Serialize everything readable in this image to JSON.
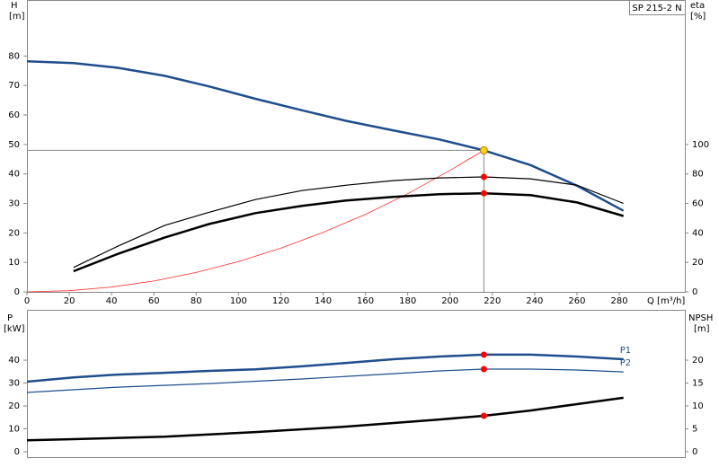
{
  "chart_data": [
    {
      "type": "line",
      "title": "SP 215-2 N",
      "ylabel": "H",
      "yunit": "[m]",
      "y2label": "eta",
      "y2unit": "[%]",
      "xlabel": "Q [m³/h]",
      "xlim": [
        0,
        311
      ],
      "xticks": [
        0,
        20,
        40,
        60,
        80,
        100,
        120,
        140,
        160,
        180,
        200,
        220,
        240,
        260,
        280
      ],
      "ylim": [
        0,
        99
      ],
      "yticks": [
        0,
        10,
        20,
        30,
        40,
        50,
        60,
        70,
        80
      ],
      "y2lim": [
        0,
        198
      ],
      "y2ticks": [
        0,
        20,
        40,
        60,
        80,
        100
      ],
      "series": [
        {
          "color": "#1f4e8c",
          "width": 2.5,
          "x": [
            0,
            22,
            43,
            65,
            86,
            108,
            130,
            151,
            173,
            195,
            216,
            238,
            260,
            282
          ],
          "values": [
            78.2,
            77.6,
            76,
            73.3,
            69.7,
            65.5,
            61.6,
            58,
            54.8,
            51.7,
            48,
            43,
            36,
            27.5
          ]
        },
        {
          "color": "#ff2a2a",
          "width": 0.8,
          "x": [
            0,
            20,
            40,
            60,
            80,
            100,
            120,
            140,
            160,
            180,
            200,
            216
          ],
          "values": [
            0,
            0.41,
            1.65,
            3.7,
            6.58,
            10.3,
            14.8,
            20.2,
            26.3,
            33.3,
            41.2,
            48
          ]
        },
        {
          "color": "#000000",
          "width": 1.2,
          "axis": "y2",
          "x": [
            22,
            43,
            65,
            86,
            108,
            130,
            151,
            173,
            195,
            216,
            238,
            260,
            282
          ],
          "values": [
            16.6,
            31,
            45,
            54,
            62.6,
            68.7,
            72.4,
            75.5,
            77.3,
            78,
            76.7,
            72.4,
            60
          ]
        },
        {
          "color": "#000000",
          "width": 2.5,
          "axis": "y2",
          "x": [
            22,
            43,
            65,
            86,
            108,
            130,
            151,
            173,
            195,
            216,
            238,
            260,
            282
          ],
          "values": [
            14,
            25.8,
            36.8,
            46,
            53.4,
            58.3,
            62,
            64.4,
            66.3,
            66.9,
            65.6,
            60.7,
            51.5
          ]
        }
      ],
      "duty_point": {
        "x": 216,
        "value": 48,
        "color": "#ffd21f"
      },
      "points": [
        {
          "color": "#ff0000",
          "axis": "y2",
          "x": 216,
          "value": 78
        },
        {
          "color": "#ff0000",
          "axis": "y2",
          "x": 216,
          "value": 66.9
        }
      ]
    },
    {
      "type": "line",
      "ylabel": "P",
      "yunit": "[kW]",
      "y2label": "NPSH",
      "y2unit": "[m]",
      "xlim": [
        0,
        311
      ],
      "ylim": [
        0,
        62
      ],
      "yticks": [
        0,
        10,
        20,
        30,
        40
      ],
      "y2lim": [
        0,
        31
      ],
      "y2ticks": [
        0,
        5,
        10,
        15,
        20
      ],
      "series": [
        {
          "name": "P1",
          "color": "#1f4e8c",
          "width": 2.5,
          "x": [
            0,
            22,
            43,
            65,
            86,
            108,
            130,
            151,
            173,
            195,
            216,
            238,
            260,
            282
          ],
          "values": [
            30.6,
            32.5,
            33.7,
            34.5,
            35.3,
            36,
            37.3,
            38.8,
            40.4,
            41.6,
            42.4,
            42.4,
            41.6,
            40.4
          ]
        },
        {
          "name": "P2",
          "color": "#1f4e8c",
          "width": 1.2,
          "x": [
            0,
            43,
            86,
            130,
            173,
            195,
            216,
            238,
            260,
            282
          ],
          "values": [
            25.9,
            28.2,
            29.8,
            31.8,
            34.1,
            35.3,
            36.1,
            36.1,
            35.7,
            34.9
          ]
        },
        {
          "color": "#000000",
          "width": 2.5,
          "axis": "y2",
          "x": [
            0,
            22,
            65,
            108,
            151,
            195,
            216,
            238,
            260,
            282
          ],
          "values": [
            2.5,
            2.75,
            3.3,
            4.3,
            5.5,
            7.05,
            7.85,
            9,
            10.4,
            11.8
          ]
        }
      ],
      "points": [
        {
          "color": "#ff0000",
          "x": 216,
          "value": 42.4
        },
        {
          "color": "#ff0000",
          "x": 216,
          "value": 36.1
        },
        {
          "color": "#ff0000",
          "axis": "y2",
          "x": 216,
          "value": 7.85
        }
      ]
    }
  ]
}
